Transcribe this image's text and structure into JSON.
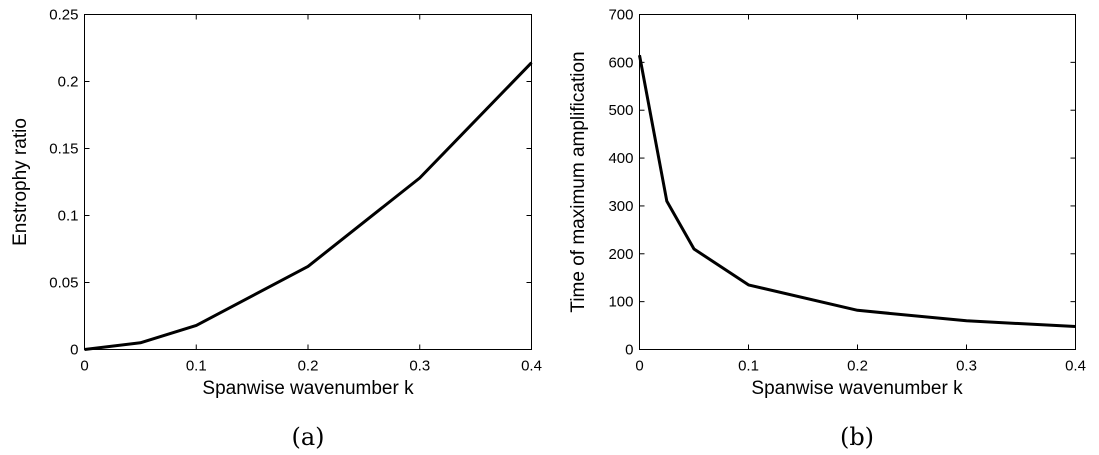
{
  "chart_data": [
    {
      "type": "line",
      "xlabel": "Spanwise wavenumber k",
      "ylabel": "Enstrophy ratio",
      "caption": "(a)",
      "xlim": [
        0,
        0.4
      ],
      "ylim": [
        0,
        0.25
      ],
      "xticks": [
        "0",
        "0.1",
        "0.2",
        "0.3",
        "0.4"
      ],
      "yticks": [
        "0",
        "0.05",
        "0.1",
        "0.15",
        "0.2",
        "0.25"
      ],
      "grid": false,
      "series": [
        {
          "x": [
            0,
            0.05,
            0.1,
            0.2,
            0.3,
            0.4
          ],
          "y": [
            0,
            0.005,
            0.018,
            0.062,
            0.128,
            0.214
          ]
        }
      ]
    },
    {
      "type": "line",
      "xlabel": "Spanwise wavenumber k",
      "ylabel": "Time of maximum amplification",
      "caption": "(b)",
      "xlim": [
        0,
        0.4
      ],
      "ylim": [
        0,
        700
      ],
      "xticks": [
        "0",
        "0.1",
        "0.2",
        "0.3",
        "0.4"
      ],
      "yticks": [
        "0",
        "100",
        "200",
        "300",
        "400",
        "500",
        "600",
        "700"
      ],
      "grid": false,
      "series": [
        {
          "x": [
            0,
            0.025,
            0.05,
            0.1,
            0.2,
            0.3,
            0.4
          ],
          "y": [
            615,
            310,
            210,
            135,
            82,
            60,
            48
          ]
        }
      ]
    }
  ]
}
